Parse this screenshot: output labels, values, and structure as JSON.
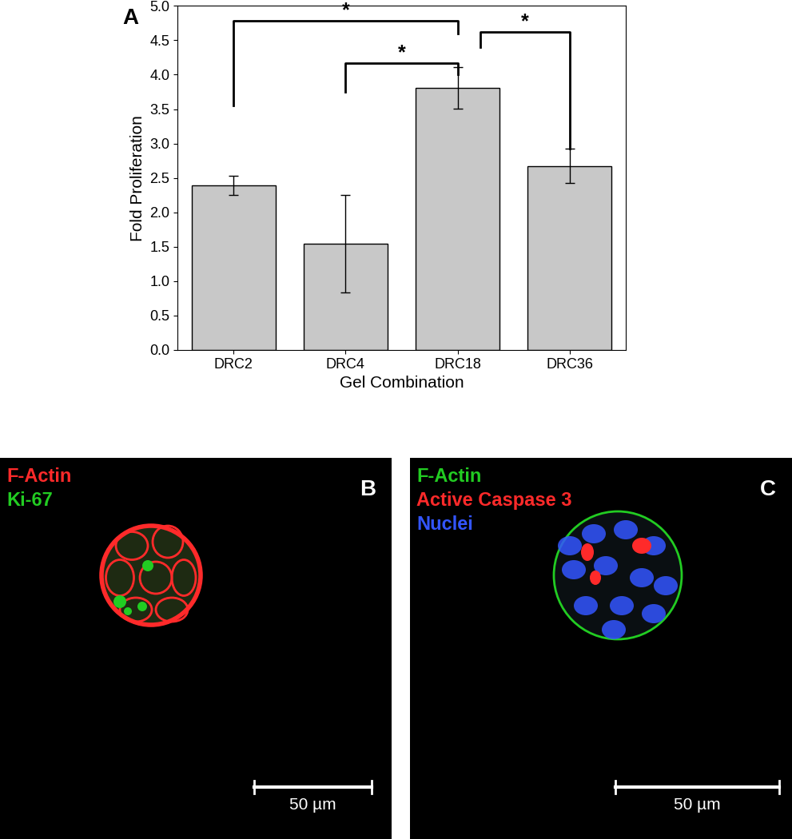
{
  "chart_data": {
    "type": "bar",
    "panel_label": "A",
    "x_label": "Gel Combination",
    "y_label": "Fold Proliferation",
    "categories": [
      "DRC2",
      "DRC4",
      "DRC18",
      "DRC36"
    ],
    "values": [
      2.39,
      1.54,
      3.81,
      2.67
    ],
    "errors": [
      0.14,
      0.71,
      0.3,
      0.25
    ],
    "color": "#c8c8c8",
    "ylim": [
      0,
      5
    ],
    "yticks": [
      {
        "value": 0,
        "label": "0.0"
      },
      {
        "value": 0.5,
        "label": "0.5"
      },
      {
        "value": 1,
        "label": "1.0"
      },
      {
        "value": 1.5,
        "label": "1.5"
      },
      {
        "value": 2,
        "label": "2.0"
      },
      {
        "value": 2.5,
        "label": "2.5"
      },
      {
        "value": 3,
        "label": "3.0"
      },
      {
        "value": 3.5,
        "label": "3.5"
      },
      {
        "value": 4,
        "label": "4.0"
      },
      {
        "value": 4.5,
        "label": "4.5"
      },
      {
        "value": 5,
        "label": "5.0"
      }
    ],
    "grid": false,
    "significance": [
      {
        "x1": 0,
        "x2": 2,
        "y": 4.78,
        "y1": 3.55,
        "y2": 4.6,
        "text": "*"
      },
      {
        "x1": 1,
        "x2": 2,
        "y": 4.17,
        "y1": 3.75,
        "y2": 4.0,
        "text": "*"
      },
      {
        "x1": 2.2,
        "x2": 3,
        "y": 4.62,
        "y1": 4.4,
        "y2": 2.93,
        "text": "*"
      }
    ]
  },
  "panels": [
    {
      "label": "B",
      "scale_bar": "50 µm",
      "stains": [
        {
          "name": "F-Actin",
          "color": "#ff2a2a"
        },
        {
          "name": "Ki-67",
          "color": "#22cc22"
        }
      ]
    },
    {
      "label": "C",
      "scale_bar": "50 µm",
      "stains": [
        {
          "name": "F-Actin",
          "color": "#22cc22"
        },
        {
          "name": "Active Caspase 3",
          "color": "#ff2a2a"
        },
        {
          "name": "Nuclei",
          "color": "#3355ff"
        }
      ]
    }
  ]
}
